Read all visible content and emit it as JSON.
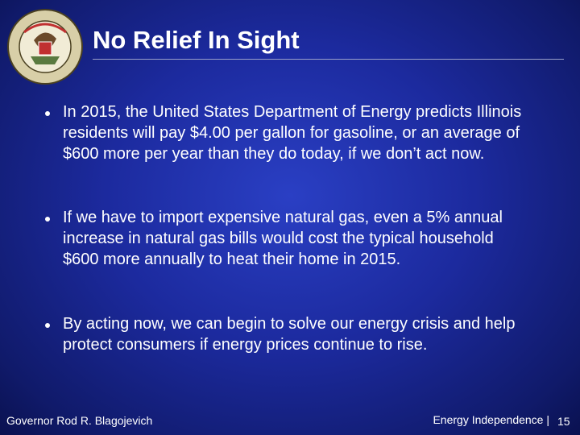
{
  "header": {
    "title": "No Relief In Sight"
  },
  "bullets": [
    "In 2015, the United States Department of Energy predicts Illinois residents will pay $4.00 per gallon for gasoline, or an average of $600 more per year than they do today, if we don’t act now.",
    "If we have to import expensive natural gas, even a 5% annual increase in natural gas bills would cost the typical household $600 more annually to heat their home in 2015.",
    "By acting now, we can begin to solve our energy crisis and help protect consumers if energy prices continue to rise."
  ],
  "footer": {
    "left": "Governor Rod R. Blagojevich",
    "right": "Energy Independence |",
    "page_number": "15"
  }
}
